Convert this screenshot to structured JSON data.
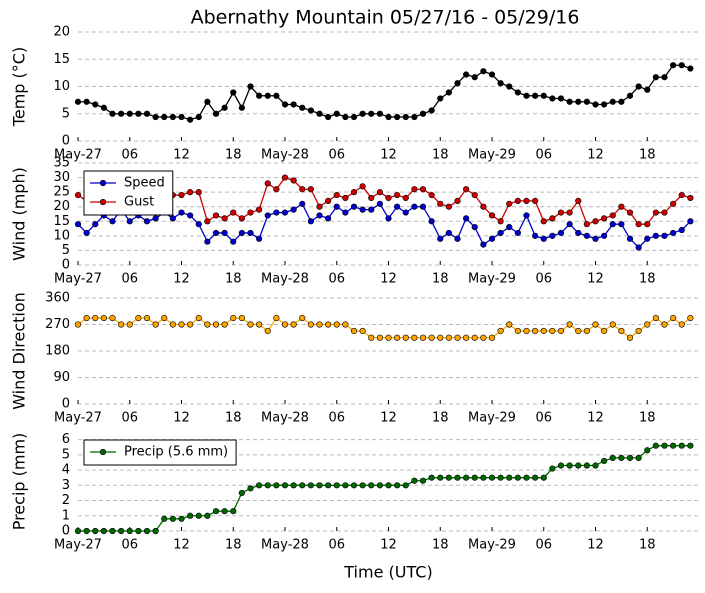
{
  "chart_data": [
    {
      "type": "line",
      "title": "Abernathy Mountain 05/27/16 - 05/29/16",
      "ylabel": "Temp (°C)",
      "x": [
        0,
        1,
        2,
        3,
        4,
        5,
        6,
        7,
        8,
        9,
        10,
        11,
        12,
        13,
        14,
        15,
        16,
        17,
        18,
        19,
        20,
        21,
        22,
        23,
        24,
        25,
        26,
        27,
        28,
        29,
        30,
        31,
        32,
        33,
        34,
        35,
        36,
        37,
        38,
        39,
        40,
        41,
        42,
        43,
        44,
        45,
        46,
        47,
        48,
        49,
        50,
        51,
        52,
        53,
        54,
        55,
        56,
        57,
        58,
        59,
        60,
        61,
        62,
        63,
        64,
        65,
        66,
        67,
        68,
        69,
        70,
        71
      ],
      "series": [
        {
          "color": "#000000",
          "values": [
            7.2,
            7.2,
            6.7,
            6.1,
            5,
            5,
            5,
            5,
            5,
            4.4,
            4.4,
            4.4,
            4.4,
            3.9,
            4.4,
            7.2,
            5,
            6.1,
            8.9,
            6.1,
            10,
            8.3,
            8.3,
            8.3,
            6.7,
            6.7,
            6.1,
            5.6,
            5,
            4.4,
            5,
            4.4,
            4.4,
            5,
            5,
            5,
            4.4,
            4.4,
            4.4,
            4.4,
            5,
            5.6,
            7.8,
            8.9,
            10.6,
            12.2,
            11.7,
            12.8,
            12.2,
            10.6,
            10,
            8.9,
            8.3,
            8.3,
            8.3,
            7.8,
            7.8,
            7.2,
            7.2,
            7.2,
            6.7,
            6.7,
            7.2,
            7.2,
            8.3,
            10,
            9.4,
            11.7,
            11.7,
            13.9,
            13.9,
            13.3
          ]
        }
      ],
      "xlim": [
        0,
        72
      ],
      "xticks": [
        {
          "value": 0,
          "label": "May-27"
        },
        {
          "value": 6,
          "label": "06"
        },
        12,
        18,
        {
          "value": 24,
          "label": "May-28"
        },
        {
          "value": 30,
          "label": "06"
        },
        {
          "value": 36,
          "label": "12"
        },
        {
          "value": 42,
          "label": "18"
        },
        {
          "value": 48,
          "label": "May-29"
        },
        {
          "value": 54,
          "label": "06"
        },
        {
          "value": 60,
          "label": "12"
        },
        {
          "value": 66,
          "label": "18"
        }
      ],
      "ylim": [
        0,
        20
      ],
      "yticks": [
        0,
        5,
        10,
        15,
        20
      ],
      "grid": true
    },
    {
      "type": "line",
      "ylabel": "Wind (mph)",
      "legend": "upper left",
      "x": [
        0,
        1,
        2,
        3,
        4,
        5,
        6,
        7,
        8,
        9,
        10,
        11,
        12,
        13,
        14,
        15,
        16,
        17,
        18,
        19,
        20,
        21,
        22,
        23,
        24,
        25,
        26,
        27,
        28,
        29,
        30,
        31,
        32,
        33,
        34,
        35,
        36,
        37,
        38,
        39,
        40,
        41,
        42,
        43,
        44,
        45,
        46,
        47,
        48,
        49,
        50,
        51,
        52,
        53,
        54,
        55,
        56,
        57,
        58,
        59,
        60,
        61,
        62,
        63,
        64,
        65,
        66,
        67,
        68,
        69,
        70,
        71
      ],
      "series": [
        {
          "name": "Speed",
          "color": "#0000cc",
          "values": [
            14,
            11,
            14,
            17,
            15,
            19,
            15,
            17,
            15,
            16,
            18,
            16,
            18,
            17,
            14,
            8,
            11,
            11,
            8,
            11,
            11,
            9,
            17,
            18,
            18,
            19,
            21,
            15,
            17,
            16,
            20,
            18,
            20,
            19,
            19,
            21,
            16,
            20,
            18,
            20,
            20,
            15,
            9,
            11,
            9,
            16,
            13,
            7,
            9,
            11,
            13,
            11,
            17,
            10,
            9,
            10,
            11,
            14,
            11,
            10,
            9,
            10,
            14,
            14,
            9,
            6,
            9,
            10,
            10,
            11,
            12,
            15
          ]
        },
        {
          "name": "Gust",
          "color": "#cc0000",
          "values": [
            24,
            22,
            23,
            23,
            22,
            23,
            22,
            23,
            22,
            23,
            24,
            24,
            24,
            25,
            25,
            15,
            17,
            16,
            18,
            16,
            18,
            19,
            28,
            26,
            30,
            29,
            26,
            26,
            20,
            22,
            24,
            23,
            25,
            27,
            23,
            25,
            23,
            24,
            23,
            26,
            26,
            24,
            21,
            20,
            22,
            26,
            24,
            20,
            17,
            15,
            21,
            22,
            22,
            22,
            15,
            16,
            18,
            18,
            22,
            14,
            15,
            16,
            17,
            20,
            18,
            14,
            14,
            18,
            18,
            21,
            24,
            23
          ]
        }
      ],
      "xlim": [
        0,
        72
      ],
      "xticks": [
        {
          "value": 0,
          "label": "May-27"
        },
        {
          "value": 6,
          "label": "06"
        },
        12,
        18,
        {
          "value": 24,
          "label": "May-28"
        },
        {
          "value": 30,
          "label": "06"
        },
        {
          "value": 36,
          "label": "12"
        },
        {
          "value": 42,
          "label": "18"
        },
        {
          "value": 48,
          "label": "May-29"
        },
        {
          "value": 54,
          "label": "06"
        },
        {
          "value": 60,
          "label": "12"
        },
        {
          "value": 66,
          "label": "18"
        }
      ],
      "ylim": [
        0,
        35
      ],
      "yticks": [
        0,
        5,
        10,
        15,
        20,
        25,
        30,
        35
      ],
      "grid": true
    },
    {
      "type": "line",
      "ylabel": "Wind Direction",
      "x": [
        0,
        1,
        2,
        3,
        4,
        5,
        6,
        7,
        8,
        9,
        10,
        11,
        12,
        13,
        14,
        15,
        16,
        17,
        18,
        19,
        20,
        21,
        22,
        23,
        24,
        25,
        26,
        27,
        28,
        29,
        30,
        31,
        32,
        33,
        34,
        35,
        36,
        37,
        38,
        39,
        40,
        41,
        42,
        43,
        44,
        45,
        46,
        47,
        48,
        49,
        50,
        51,
        52,
        53,
        54,
        55,
        56,
        57,
        58,
        59,
        60,
        61,
        62,
        63,
        64,
        65,
        66,
        67,
        68,
        69,
        70,
        71
      ],
      "series": [
        {
          "color": "#ffa500",
          "values": [
            270,
            292,
            292,
            292,
            292,
            270,
            270,
            292,
            292,
            270,
            292,
            270,
            270,
            270,
            292,
            270,
            270,
            270,
            292,
            292,
            270,
            270,
            248,
            292,
            270,
            270,
            292,
            270,
            270,
            270,
            270,
            270,
            248,
            248,
            225,
            225,
            225,
            225,
            225,
            225,
            225,
            225,
            225,
            225,
            225,
            225,
            225,
            225,
            225,
            248,
            270,
            248,
            248,
            248,
            248,
            248,
            248,
            270,
            248,
            248,
            270,
            248,
            270,
            248,
            225,
            248,
            270,
            292,
            270,
            292,
            270,
            292
          ]
        }
      ],
      "xlim": [
        0,
        72
      ],
      "xticks": [
        {
          "value": 0,
          "label": "May-27"
        },
        {
          "value": 6,
          "label": "06"
        },
        12,
        18,
        {
          "value": 24,
          "label": "May-28"
        },
        {
          "value": 30,
          "label": "06"
        },
        {
          "value": 36,
          "label": "12"
        },
        {
          "value": 42,
          "label": "18"
        },
        {
          "value": 48,
          "label": "May-29"
        },
        {
          "value": 54,
          "label": "06"
        },
        {
          "value": 60,
          "label": "12"
        },
        {
          "value": 66,
          "label": "18"
        }
      ],
      "ylim": [
        0,
        360
      ],
      "yticks": [
        0,
        90,
        180,
        270,
        360
      ],
      "grid": true
    },
    {
      "type": "line",
      "ylabel": "Precip (mm)",
      "xlabel": "Time (UTC)",
      "legend": "upper left",
      "x": [
        0,
        1,
        2,
        3,
        4,
        5,
        6,
        7,
        8,
        9,
        10,
        11,
        12,
        13,
        14,
        15,
        16,
        17,
        18,
        19,
        20,
        21,
        22,
        23,
        24,
        25,
        26,
        27,
        28,
        29,
        30,
        31,
        32,
        33,
        34,
        35,
        36,
        37,
        38,
        39,
        40,
        41,
        42,
        43,
        44,
        45,
        46,
        47,
        48,
        49,
        50,
        51,
        52,
        53,
        54,
        55,
        56,
        57,
        58,
        59,
        60,
        61,
        62,
        63,
        64,
        65,
        66,
        67,
        68,
        69,
        70,
        71
      ],
      "series": [
        {
          "name": "Precip (5.6 mm)",
          "color": "#006600",
          "values": [
            0,
            0,
            0,
            0,
            0,
            0,
            0,
            0,
            0,
            0,
            0.8,
            0.8,
            0.8,
            1.0,
            1.0,
            1.0,
            1.3,
            1.3,
            1.3,
            2.5,
            2.8,
            3.0,
            3.0,
            3.0,
            3.0,
            3.0,
            3.0,
            3.0,
            3.0,
            3.0,
            3.0,
            3.0,
            3.0,
            3.0,
            3.0,
            3.0,
            3.0,
            3.0,
            3.0,
            3.3,
            3.3,
            3.5,
            3.5,
            3.5,
            3.5,
            3.5,
            3.5,
            3.5,
            3.5,
            3.5,
            3.5,
            3.5,
            3.5,
            3.5,
            3.5,
            4.1,
            4.3,
            4.3,
            4.3,
            4.3,
            4.3,
            4.6,
            4.8,
            4.8,
            4.8,
            4.8,
            5.3,
            5.6,
            5.6,
            5.6,
            5.6,
            5.6
          ]
        }
      ],
      "xlim": [
        0,
        72
      ],
      "xticks": [
        {
          "value": 0,
          "label": "May-27"
        },
        {
          "value": 6,
          "label": "06"
        },
        12,
        18,
        {
          "value": 24,
          "label": "May-28"
        },
        {
          "value": 30,
          "label": "06"
        },
        {
          "value": 36,
          "label": "12"
        },
        {
          "value": 42,
          "label": "18"
        },
        {
          "value": 48,
          "label": "May-29"
        },
        {
          "value": 54,
          "label": "06"
        },
        {
          "value": 60,
          "label": "12"
        },
        {
          "value": 66,
          "label": "18"
        }
      ],
      "ylim": [
        0,
        6.5
      ],
      "yticks": [
        0,
        1,
        2,
        3,
        4,
        5,
        6
      ],
      "grid": true
    }
  ]
}
